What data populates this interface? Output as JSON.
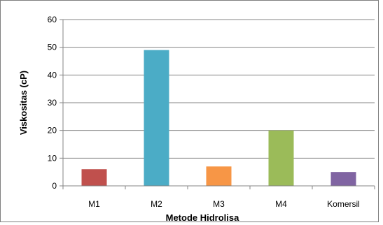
{
  "chart_data": {
    "type": "bar",
    "categories": [
      "M1",
      "M2",
      "M3",
      "M4",
      "Komersil"
    ],
    "values": [
      6,
      49,
      7,
      20,
      5
    ],
    "colors": [
      "#c0504d",
      "#4bacc6",
      "#f79646",
      "#9bbb59",
      "#8064a2"
    ],
    "xlabel": "Metode Hidrolisa",
    "ylabel": "Viskositas (cP)",
    "ylim": [
      0,
      60
    ],
    "yticks": [
      0,
      10,
      20,
      30,
      40,
      50,
      60
    ],
    "grid": true,
    "legend": "none"
  }
}
